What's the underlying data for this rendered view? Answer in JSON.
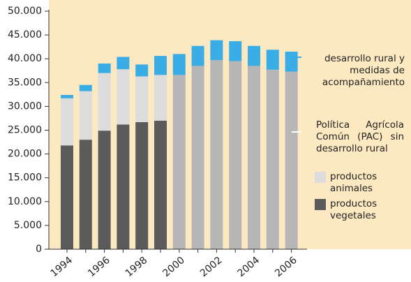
{
  "chart_data": {
    "type": "stacked-bar",
    "categories": [
      "1994",
      null,
      "1996",
      null,
      "1998",
      null,
      "2000",
      null,
      "2002",
      null,
      "2004",
      null,
      "2006"
    ],
    "series": [
      {
        "name": "productos vegetales",
        "color": "#5b5b5b",
        "values": [
          21800,
          23000,
          24900,
          26200,
          26700,
          27000,
          null,
          null,
          null,
          null,
          null,
          null,
          null
        ]
      },
      {
        "name": "productos animales",
        "color": "#dcdcdc",
        "values": [
          9900,
          10200,
          12100,
          11600,
          9600,
          9600,
          null,
          null,
          null,
          null,
          null,
          null,
          null
        ]
      },
      {
        "name": "Política Agrícola Común (PAC) sin desarrollo rural",
        "color": "#b6b6b6",
        "values": [
          null,
          null,
          null,
          null,
          null,
          null,
          36600,
          38500,
          39700,
          39500,
          38500,
          37700,
          37300
        ]
      },
      {
        "name": "desarrollo rural y medidas de acompañamiento",
        "color": "#3aace6",
        "values": [
          700,
          1300,
          2000,
          2600,
          2500,
          4000,
          4400,
          4200,
          4200,
          4200,
          4200,
          4200,
          4200
        ]
      }
    ],
    "ylim": [
      0,
      50000
    ],
    "yticks": [
      0,
      {
        "value": 5000,
        "label": "5.000"
      },
      {
        "value": 10000,
        "label": "10.000"
      },
      {
        "value": 15000,
        "label": "15.000"
      },
      {
        "value": 20000,
        "label": "20.000"
      },
      {
        "value": 25000,
        "label": "25.000"
      },
      {
        "value": 30000,
        "label": "30.000"
      },
      {
        "value": 35000,
        "label": "35.000"
      },
      {
        "value": 40000,
        "label": "40.000"
      },
      {
        "value": 45000,
        "label": "45.000"
      },
      {
        "value": 50000,
        "label": "50.000"
      }
    ],
    "background": "#fce9c1"
  }
}
